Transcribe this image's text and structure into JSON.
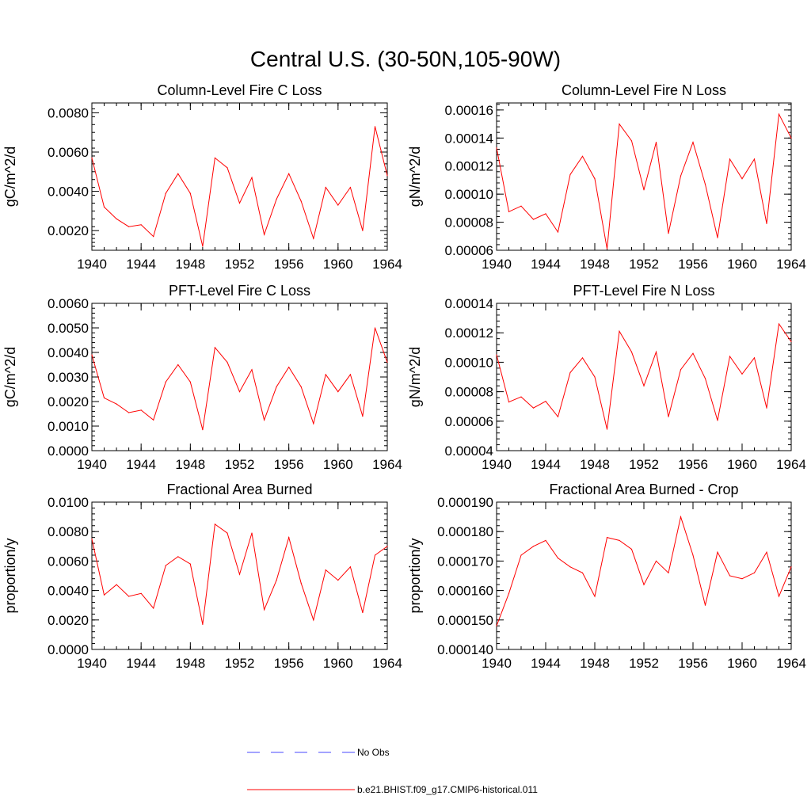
{
  "title": "Central U.S. (30-50N,105-90W)",
  "legend": {
    "entries": [
      {
        "label": "No Obs",
        "color": "#4a4aff",
        "dash": "dashed"
      },
      {
        "label": "b.e21.BHIST.f09_g17.CMIP6-historical.011",
        "color": "#ff0000",
        "dash": "solid"
      }
    ]
  },
  "chart_data": [
    {
      "type": "line",
      "title": "Column-Level Fire C Loss",
      "ylabel": "gC/m^2/d",
      "xlabel": "",
      "xlim": [
        1940,
        1964
      ],
      "ylim": [
        0.001,
        0.0085
      ],
      "xticks": [
        "1940",
        "1944",
        "1948",
        "1952",
        "1956",
        "1960",
        "1964"
      ],
      "yticks": [
        {
          "v": 0.002,
          "label": "0.0020"
        },
        {
          "v": 0.004,
          "label": "0.0040"
        },
        {
          "v": 0.006,
          "label": "0.0060"
        },
        {
          "v": 0.008,
          "label": "0.0080"
        }
      ],
      "x": [
        1940,
        1941,
        1942,
        1943,
        1944,
        1945,
        1946,
        1947,
        1948,
        1949,
        1950,
        1951,
        1952,
        1953,
        1954,
        1955,
        1956,
        1957,
        1958,
        1959,
        1960,
        1961,
        1962,
        1963,
        1964
      ],
      "series": [
        {
          "name": "b.e21.BHIST.f09_g17.CMIP6-historical.011",
          "color": "#ff0000",
          "values": [
            0.0057,
            0.0032,
            0.0026,
            0.0022,
            0.0023,
            0.0017,
            0.0039,
            0.0049,
            0.0039,
            0.0012,
            0.0057,
            0.0052,
            0.0034,
            0.0047,
            0.0018,
            0.0036,
            0.0049,
            0.0035,
            0.0016,
            0.0042,
            0.0033,
            0.0042,
            0.002,
            0.0073,
            0.0048
          ]
        }
      ]
    },
    {
      "type": "line",
      "title": "Column-Level Fire N Loss",
      "ylabel": "gN/m^2/d",
      "xlabel": "",
      "xlim": [
        1940,
        1964
      ],
      "ylim": [
        6e-05,
        0.000165
      ],
      "xticks": [
        "1940",
        "1944",
        "1948",
        "1952",
        "1956",
        "1960",
        "1964"
      ],
      "yticks": [
        {
          "v": 6e-05,
          "label": "0.00006"
        },
        {
          "v": 8e-05,
          "label": "0.00008"
        },
        {
          "v": 0.0001,
          "label": "0.00010"
        },
        {
          "v": 0.00012,
          "label": "0.00012"
        },
        {
          "v": 0.00014,
          "label": "0.00014"
        },
        {
          "v": 0.00016,
          "label": "0.00016"
        }
      ],
      "x": [
        1940,
        1941,
        1942,
        1943,
        1944,
        1945,
        1946,
        1947,
        1948,
        1949,
        1950,
        1951,
        1952,
        1953,
        1954,
        1955,
        1956,
        1957,
        1958,
        1959,
        1960,
        1961,
        1962,
        1963,
        1964
      ],
      "series": [
        {
          "name": "b.e21.BHIST.f09_g17.CMIP6-historical.011",
          "color": "#ff0000",
          "values": [
            0.000133,
            8.75e-05,
            9.15e-05,
            8.2e-05,
            8.6e-05,
            7.3e-05,
            0.000114,
            0.000127,
            0.000111,
            6.1e-05,
            0.00015,
            0.000138,
            0.000103,
            0.000137,
            7.2e-05,
            0.000113,
            0.000137,
            0.000107,
            6.9e-05,
            0.000125,
            0.000111,
            0.000125,
            7.9e-05,
            0.000157,
            0.00014
          ]
        }
      ]
    },
    {
      "type": "line",
      "title": "PFT-Level Fire C Loss",
      "ylabel": "gC/m^2/d",
      "xlabel": "",
      "xlim": [
        1940,
        1964
      ],
      "ylim": [
        0,
        0.006
      ],
      "xticks": [
        "1940",
        "1944",
        "1948",
        "1952",
        "1956",
        "1960",
        "1964"
      ],
      "yticks": [
        {
          "v": 0,
          "label": "0.0000"
        },
        {
          "v": 0.001,
          "label": "0.0010"
        },
        {
          "v": 0.002,
          "label": "0.0020"
        },
        {
          "v": 0.003,
          "label": "0.0030"
        },
        {
          "v": 0.004,
          "label": "0.0040"
        },
        {
          "v": 0.005,
          "label": "0.0050"
        },
        {
          "v": 0.006,
          "label": "0.0060"
        }
      ],
      "x": [
        1940,
        1941,
        1942,
        1943,
        1944,
        1945,
        1946,
        1947,
        1948,
        1949,
        1950,
        1951,
        1952,
        1953,
        1954,
        1955,
        1956,
        1957,
        1958,
        1959,
        1960,
        1961,
        1962,
        1963,
        1964
      ],
      "series": [
        {
          "name": "b.e21.BHIST.f09_g17.CMIP6-historical.011",
          "color": "#ff0000",
          "values": [
            0.0039,
            0.00215,
            0.0019,
            0.00155,
            0.00165,
            0.00125,
            0.0028,
            0.0035,
            0.0028,
            0.00085,
            0.0042,
            0.0036,
            0.0024,
            0.0033,
            0.00125,
            0.0026,
            0.0034,
            0.0026,
            0.0011,
            0.0031,
            0.0024,
            0.0031,
            0.0014,
            0.005,
            0.0036
          ]
        }
      ]
    },
    {
      "type": "line",
      "title": "PFT-Level Fire N Loss",
      "ylabel": "gN/m^2/d",
      "xlabel": "",
      "xlim": [
        1940,
        1964
      ],
      "ylim": [
        4e-05,
        0.00014
      ],
      "xticks": [
        "1940",
        "1944",
        "1948",
        "1952",
        "1956",
        "1960",
        "1964"
      ],
      "yticks": [
        {
          "v": 4e-05,
          "label": "0.00004"
        },
        {
          "v": 6e-05,
          "label": "0.00006"
        },
        {
          "v": 8e-05,
          "label": "0.00008"
        },
        {
          "v": 0.0001,
          "label": "0.00010"
        },
        {
          "v": 0.00012,
          "label": "0.00012"
        },
        {
          "v": 0.00014,
          "label": "0.00014"
        }
      ],
      "x": [
        1940,
        1941,
        1942,
        1943,
        1944,
        1945,
        1946,
        1947,
        1948,
        1949,
        1950,
        1951,
        1952,
        1953,
        1954,
        1955,
        1956,
        1957,
        1958,
        1959,
        1960,
        1961,
        1962,
        1963,
        1964
      ],
      "series": [
        {
          "name": "b.e21.BHIST.f09_g17.CMIP6-historical.011",
          "color": "#ff0000",
          "values": [
            0.000105,
            7.3e-05,
            7.65e-05,
            6.9e-05,
            7.35e-05,
            6.3e-05,
            9.3e-05,
            0.000103,
            9e-05,
            5.45e-05,
            0.000121,
            0.000107,
            8.4e-05,
            0.000107,
            6.3e-05,
            9.5e-05,
            0.000106,
            8.9e-05,
            6.05e-05,
            0.000104,
            9.2e-05,
            0.000103,
            6.9e-05,
            0.000126,
            0.000114
          ]
        }
      ]
    },
    {
      "type": "line",
      "title": "Fractional Area Burned",
      "ylabel": "proportion/y",
      "xlabel": "",
      "xlim": [
        1940,
        1964
      ],
      "ylim": [
        0,
        0.01
      ],
      "xticks": [
        "1940",
        "1944",
        "1948",
        "1952",
        "1956",
        "1960",
        "1964"
      ],
      "yticks": [
        {
          "v": 0,
          "label": "0.0000"
        },
        {
          "v": 0.002,
          "label": "0.0020"
        },
        {
          "v": 0.004,
          "label": "0.0040"
        },
        {
          "v": 0.006,
          "label": "0.0060"
        },
        {
          "v": 0.008,
          "label": "0.0080"
        },
        {
          "v": 0.01,
          "label": "0.0100"
        }
      ],
      "x": [
        1940,
        1941,
        1942,
        1943,
        1944,
        1945,
        1946,
        1947,
        1948,
        1949,
        1950,
        1951,
        1952,
        1953,
        1954,
        1955,
        1956,
        1957,
        1958,
        1959,
        1960,
        1961,
        1962,
        1963,
        1964
      ],
      "series": [
        {
          "name": "b.e21.BHIST.f09_g17.CMIP6-historical.011",
          "color": "#ff0000",
          "values": [
            0.0075,
            0.0037,
            0.0044,
            0.0036,
            0.0038,
            0.0028,
            0.0057,
            0.0063,
            0.0058,
            0.0017,
            0.0085,
            0.0079,
            0.0051,
            0.0079,
            0.0027,
            0.0047,
            0.0076,
            0.0045,
            0.002,
            0.0054,
            0.0047,
            0.0056,
            0.0025,
            0.0064,
            0.007
          ]
        }
      ]
    },
    {
      "type": "line",
      "title": "Fractional Area Burned - Crop",
      "ylabel": "proportion/y",
      "xlabel": "",
      "xlim": [
        1940,
        1964
      ],
      "ylim": [
        0.00014,
        0.00019
      ],
      "xticks": [
        "1940",
        "1944",
        "1948",
        "1952",
        "1956",
        "1960",
        "1964"
      ],
      "yticks": [
        {
          "v": 0.00014,
          "label": "0.000140"
        },
        {
          "v": 0.00015,
          "label": "0.000150"
        },
        {
          "v": 0.00016,
          "label": "0.000160"
        },
        {
          "v": 0.00017,
          "label": "0.000170"
        },
        {
          "v": 0.00018,
          "label": "0.000180"
        },
        {
          "v": 0.00019,
          "label": "0.000190"
        }
      ],
      "x": [
        1940,
        1941,
        1942,
        1943,
        1944,
        1945,
        1946,
        1947,
        1948,
        1949,
        1950,
        1951,
        1952,
        1953,
        1954,
        1955,
        1956,
        1957,
        1958,
        1959,
        1960,
        1961,
        1962,
        1963,
        1964
      ],
      "series": [
        {
          "name": "b.e21.BHIST.f09_g17.CMIP6-historical.011",
          "color": "#ff0000",
          "values": [
            0.000148,
            0.000159,
            0.000172,
            0.000175,
            0.000177,
            0.000171,
            0.000168,
            0.000166,
            0.000158,
            0.000178,
            0.000177,
            0.000174,
            0.000162,
            0.00017,
            0.000166,
            0.000185,
            0.000172,
            0.000155,
            0.000173,
            0.000165,
            0.000164,
            0.000166,
            0.000173,
            0.000158,
            0.000168
          ]
        }
      ]
    }
  ]
}
